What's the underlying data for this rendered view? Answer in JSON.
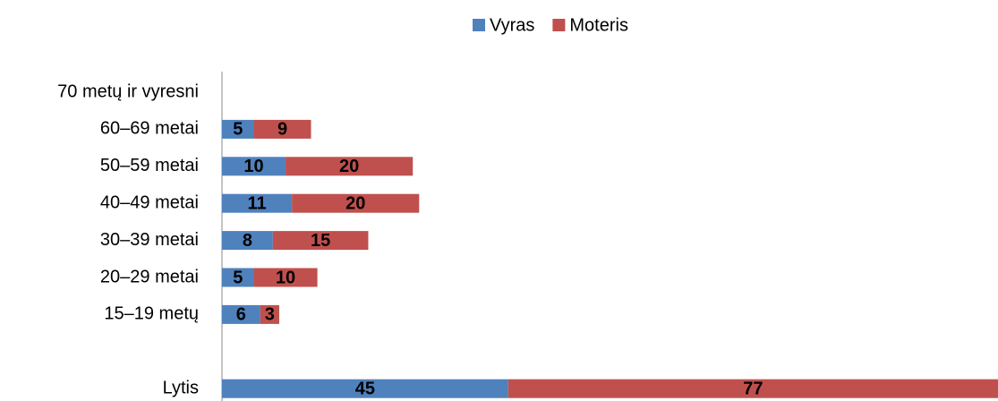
{
  "chart_data": {
    "type": "stacked-barh",
    "categories": [
      "70 metų ir vyresni",
      "60–69 metai",
      "50–59 metai",
      "40–49 metai",
      "30–39 metai",
      "20–29 metai",
      "15–19 metų",
      null,
      "Lytis"
    ],
    "series": [
      {
        "name": "Vyras",
        "color": "#4f81bd",
        "values": [
          null,
          5,
          10,
          11,
          8,
          5,
          6,
          null,
          45
        ]
      },
      {
        "name": "Moteris",
        "color": "#c0504d",
        "values": [
          null,
          9,
          20,
          20,
          15,
          10,
          3,
          null,
          77
        ]
      }
    ],
    "xlim": [
      0,
      122
    ],
    "legend": "top"
  }
}
